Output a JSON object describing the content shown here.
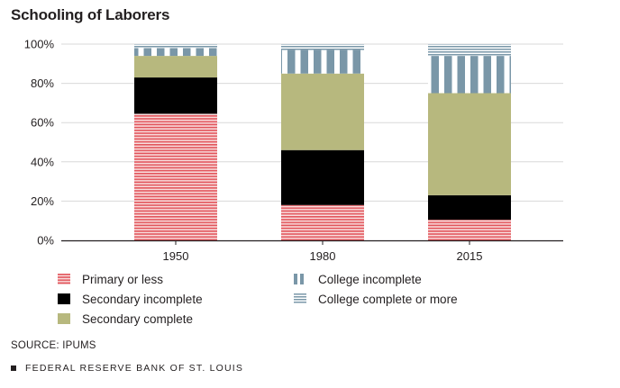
{
  "chart_data": {
    "type": "bar",
    "stacked": true,
    "title": "Schooling of Laborers",
    "categories": [
      "1950",
      "1980",
      "2015"
    ],
    "ylim": [
      0,
      100
    ],
    "yticks": [
      0,
      20,
      40,
      60,
      80,
      100
    ],
    "ytick_labels": [
      "0%",
      "20%",
      "40%",
      "60%",
      "80%",
      "100%"
    ],
    "grid": true,
    "series": [
      {
        "name": "Primary or less",
        "values": [
          64.5,
          18,
          10.5
        ],
        "color": "#e2545b",
        "pattern": "horizontal-lines"
      },
      {
        "name": "Secondary incomplete",
        "values": [
          18.5,
          28,
          12.5
        ],
        "color": "#000000",
        "pattern": "solid"
      },
      {
        "name": "Secondary complete",
        "values": [
          11,
          39,
          52
        ],
        "color": "#b7b87e",
        "pattern": "solid"
      },
      {
        "name": "College incomplete",
        "values": [
          4,
          12,
          19
        ],
        "color": "#7a97a8",
        "pattern": "vertical-bars"
      },
      {
        "name": "College complete or more",
        "values": [
          2,
          3,
          6
        ],
        "color": "#7a97a8",
        "pattern": "horizontal-lines"
      }
    ]
  },
  "source": "SOURCE: IPUMS",
  "footer": "FEDERAL RESERVE BANK OF ST. LOUIS"
}
